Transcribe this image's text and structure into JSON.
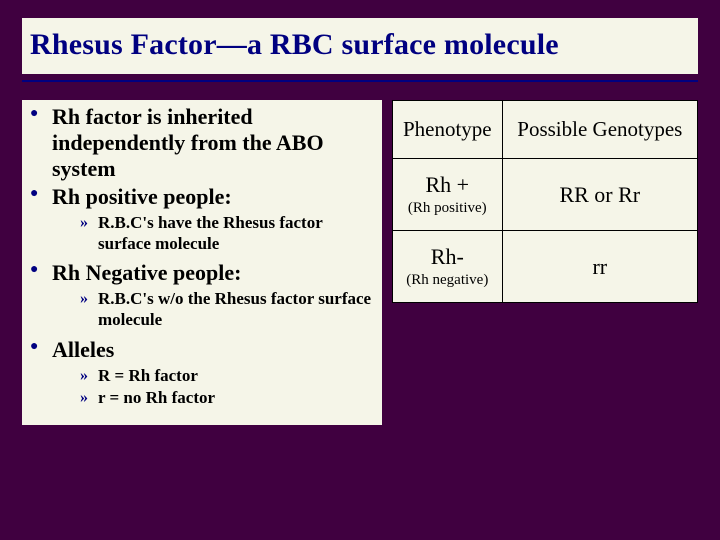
{
  "colors": {
    "background": "#400040",
    "panel": "#f5f5e8",
    "accent": "#000080",
    "text": "#000000"
  },
  "title": "Rhesus Factor—a RBC surface molecule",
  "bullets": {
    "b1": "Rh factor is inherited independently from the ABO system",
    "b2": "Rh positive people:",
    "b2s1": "R.B.C's have the Rhesus factor surface molecule",
    "b3": "Rh Negative people:",
    "b3s1": "R.B.C's w/o the Rhesus factor surface molecule",
    "b4": "Alleles",
    "b4s1": "R = Rh factor",
    "b4s2": "r = no Rh factor"
  },
  "table": {
    "type": "table",
    "columns": [
      "Phenotype",
      "Possible Genotypes"
    ],
    "rows": [
      {
        "pheno_main": "Rh +",
        "pheno_sub": "(Rh positive)",
        "geno": "RR or Rr"
      },
      {
        "pheno_main": "Rh-",
        "pheno_sub": "(Rh negative)",
        "geno": "rr"
      }
    ],
    "border_color": "#000000",
    "header_fontsize": 21,
    "cell_fontsize": 22,
    "subtext_fontsize": 15,
    "background_color": "#f5f5e8"
  }
}
